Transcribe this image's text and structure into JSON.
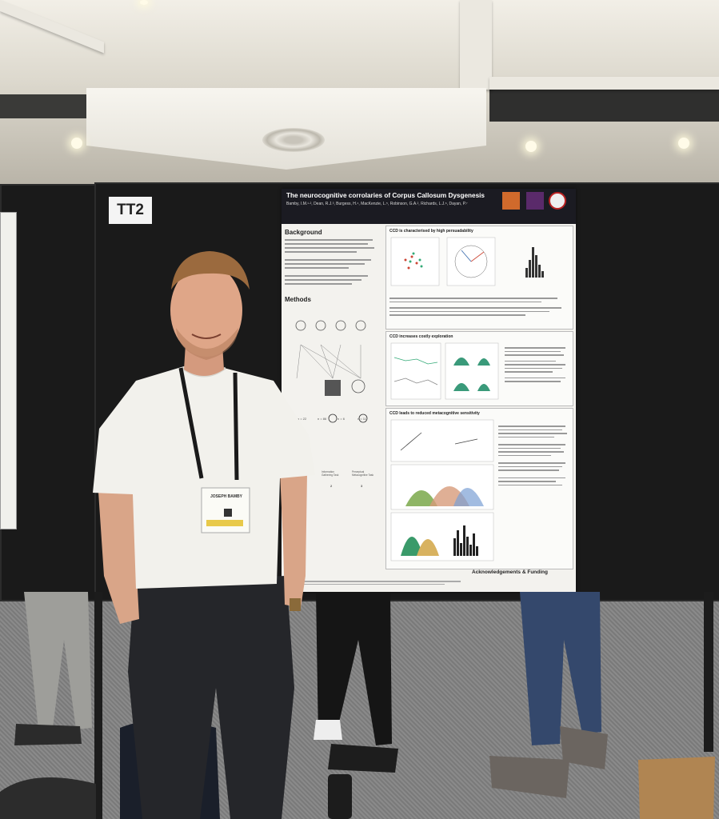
{
  "sign": {
    "label": "TT2"
  },
  "poster": {
    "title": "The neurocognitive corrolaries of Corpus Callosum Dysgenesis",
    "authors": "Bamby, I.M.¹·², Dean, R.J.³, Burgess, H.⁴, MacKenzie, L.⁵, Robinson, G.A.², Richards, L.J.⁶, Dayan, P.⁷",
    "sections": {
      "background": "Background",
      "methods": "Methods",
      "s1": "CCD is characterised by high persuadability",
      "s2": "CCD increases costly exploration",
      "s3": "CCD leads to reduced metacognitive sensitivity",
      "footer": "Acknowledgements & Funding"
    },
    "method_counts": [
      "n = 22",
      "n = 86",
      "n = 6",
      "n = 11"
    ],
    "task_numbers": [
      "2",
      "3"
    ],
    "task_labels": [
      "Information Gathering Task",
      "Perceptual Metacognitive Task"
    ]
  },
  "badge": {
    "text": "JOSEPH BAMBY"
  },
  "colors": {
    "shirt": "#f2f1ec",
    "trousers": "#25262a",
    "board": "#1a1a1a",
    "poster_header": "#1b1b22"
  }
}
